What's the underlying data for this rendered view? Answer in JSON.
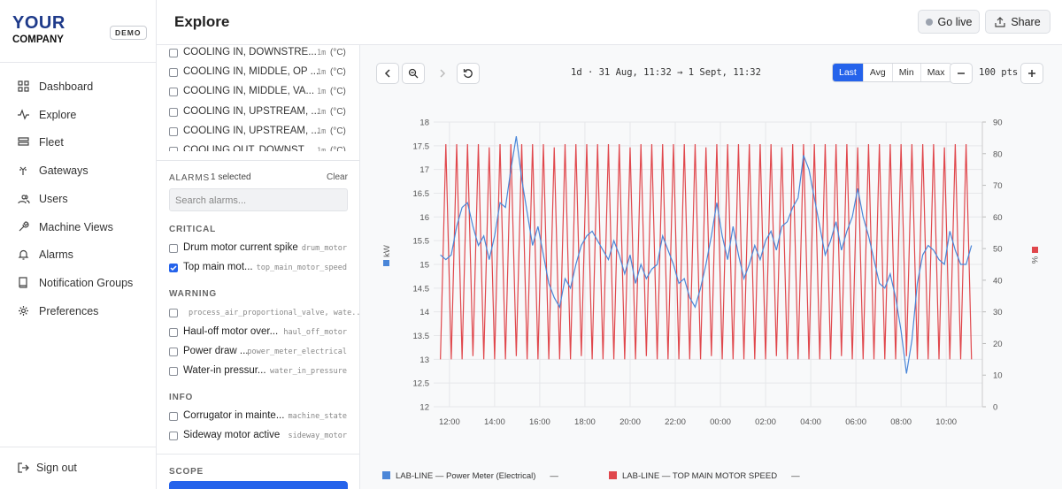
{
  "sidebar": {
    "logo_line1": "YOUR",
    "logo_line2": "COMPANY",
    "badge": "DEMO",
    "nav": [
      "Dashboard",
      "Explore",
      "Fleet",
      "Gateways",
      "Users",
      "Machine Views",
      "Alarms",
      "Notification Groups",
      "Preferences"
    ],
    "sign_out": "Sign out"
  },
  "header": {
    "title": "Explore",
    "go_live": "Go live",
    "share": "Share"
  },
  "signals": [
    {
      "name": "COOLING IN, DOWNSTRE...",
      "interval": "1m",
      "unit": "(°C)"
    },
    {
      "name": "COOLING IN, MIDDLE, OP ...",
      "interval": "1m",
      "unit": "(°C)"
    },
    {
      "name": "COOLING IN, MIDDLE, VA...",
      "interval": "1m",
      "unit": "(°C)"
    },
    {
      "name": "COOLING IN, UPSTREAM, ...",
      "interval": "1m",
      "unit": "(°C)"
    },
    {
      "name": "COOLING IN, UPSTREAM, ...",
      "interval": "1m",
      "unit": "(°C)"
    },
    {
      "name": "COOLING OUT, DOWNST...",
      "interval": "1m",
      "unit": "(°C)"
    }
  ],
  "alarms": {
    "title": "ALARMS",
    "selected": "1 selected",
    "clear": "Clear",
    "search_placeholder": "Search alarms...",
    "groups": [
      {
        "name": "CRITICAL",
        "items": [
          {
            "name": "Drum motor current spike",
            "code": "drum_motor",
            "checked": false
          },
          {
            "name": "Top main mot...",
            "code": "top_main_motor_speed",
            "checked": true
          }
        ]
      },
      {
        "name": "WARNING",
        "items": [
          {
            "code": "process_air_proportional_valve, wate...",
            "checked": false
          },
          {
            "name": "Haul-off motor over...",
            "code": "haul_off_motor",
            "checked": false
          },
          {
            "name": "Power draw ...",
            "code": "power_meter_electrical",
            "checked": false
          },
          {
            "name": "Water-in pressur...",
            "code": "water_in_pressure",
            "checked": false
          }
        ]
      },
      {
        "name": "INFO",
        "items": [
          {
            "name": "Corrugator in mainte...",
            "code": "machine_state",
            "checked": false
          },
          {
            "name": "Sideway motor active",
            "code": "sideway_motor",
            "checked": false
          }
        ]
      }
    ]
  },
  "scope": {
    "title": "SCOPE"
  },
  "toolbar": {
    "range": "1d · 31 Aug, 11:32 → 1 Sept, 11:32",
    "modes": [
      "Last",
      "Avg",
      "Min",
      "Max"
    ],
    "active_mode": "Last",
    "points": "100 pts"
  },
  "chart_data": {
    "type": "line",
    "ylabel": "kW",
    "y2label": "%",
    "grid": true,
    "xlim": [
      11.3,
      35.6
    ],
    "xticks": [
      {
        "value": 12,
        "label": "12:00"
      },
      {
        "value": 14,
        "label": "14:00"
      },
      {
        "value": 16,
        "label": "16:00"
      },
      {
        "value": 18,
        "label": "18:00"
      },
      {
        "value": 20,
        "label": "20:00"
      },
      {
        "value": 22,
        "label": "22:00"
      },
      {
        "value": 24,
        "label": "00:00"
      },
      {
        "value": 26,
        "label": "02:00"
      },
      {
        "value": 28,
        "label": "04:00"
      },
      {
        "value": 30,
        "label": "06:00"
      },
      {
        "value": 32,
        "label": "08:00"
      },
      {
        "value": 34,
        "label": "10:00"
      }
    ],
    "ylim": [
      12,
      18
    ],
    "yticks": [
      12,
      12.5,
      13,
      13.5,
      14,
      14.5,
      15,
      15.5,
      16,
      16.5,
      17,
      17.5,
      18
    ],
    "y2lim": [
      0,
      90
    ],
    "y2ticks": [
      0,
      10,
      20,
      30,
      40,
      50,
      60,
      70,
      80,
      90
    ],
    "x": [
      11.6,
      11.84,
      12.08,
      12.32,
      12.56,
      12.8,
      13.04,
      13.28,
      13.52,
      13.76,
      14,
      14.24,
      14.48,
      14.72,
      14.96,
      15.2,
      15.44,
      15.68,
      15.92,
      16.16,
      16.4,
      16.64,
      16.88,
      17.12,
      17.36,
      17.6,
      17.84,
      18.08,
      18.32,
      18.56,
      18.8,
      19.04,
      19.28,
      19.52,
      19.76,
      20,
      20.24,
      20.48,
      20.72,
      20.96,
      21.2,
      21.44,
      21.68,
      21.92,
      22.16,
      22.4,
      22.64,
      22.88,
      23.12,
      23.36,
      23.6,
      23.84,
      24.08,
      24.32,
      24.56,
      24.8,
      25.04,
      25.28,
      25.52,
      25.76,
      26,
      26.24,
      26.48,
      26.72,
      26.96,
      27.2,
      27.44,
      27.68,
      27.92,
      28.16,
      28.4,
      28.64,
      28.88,
      29.12,
      29.36,
      29.6,
      29.84,
      30.08,
      30.32,
      30.56,
      30.8,
      31.04,
      31.28,
      31.52,
      31.76,
      32,
      32.24,
      32.48,
      32.72,
      32.96,
      33.2,
      33.44,
      33.68,
      33.92,
      34.16,
      34.4,
      34.64,
      34.88,
      35.12
    ],
    "series": [
      {
        "name": "LAB-LINE — Power Meter (Electrical)",
        "legend_value": "—",
        "color": "#4a86d8",
        "axis": "y",
        "values": [
          15.2,
          15.1,
          15.2,
          15.8,
          16.2,
          16.3,
          15.8,
          15.4,
          15.6,
          15.1,
          15.6,
          16.3,
          16.2,
          17.0,
          17.7,
          16.8,
          16.1,
          15.4,
          15.8,
          15.2,
          14.6,
          14.3,
          14.1,
          14.7,
          14.5,
          15.0,
          15.4,
          15.6,
          15.7,
          15.5,
          15.3,
          15.1,
          15.5,
          15.2,
          14.8,
          15.2,
          14.6,
          15.0,
          14.7,
          14.9,
          15.0,
          15.6,
          15.3,
          15.0,
          14.6,
          14.7,
          14.3,
          14.1,
          14.5,
          15.0,
          15.6,
          16.3,
          15.6,
          15.1,
          15.8,
          15.2,
          14.7,
          15.0,
          15.4,
          15.1,
          15.5,
          15.7,
          15.3,
          15.8,
          15.9,
          16.2,
          16.4,
          17.3,
          17.0,
          16.4,
          15.8,
          15.2,
          15.5,
          15.9,
          15.3,
          15.7,
          16.0,
          16.6,
          16.0,
          15.6,
          15.1,
          14.6,
          14.5,
          14.8,
          14.3,
          13.6,
          12.7,
          13.4,
          14.6,
          15.2,
          15.4,
          15.3,
          15.1,
          15.0,
          15.7,
          15.3,
          15.0,
          15.0,
          15.4
        ]
      },
      {
        "name": "LAB-LINE — TOP MAIN MOTOR SPEED",
        "legend_value": "—",
        "color": "#e0474c",
        "axis": "y2",
        "values": [
          15,
          83,
          15,
          83,
          15,
          83,
          16,
          83,
          15,
          82,
          15,
          83,
          15,
          83,
          16,
          83,
          15,
          83,
          15,
          83,
          15,
          82,
          15,
          83,
          15,
          83,
          16,
          83,
          15,
          83,
          15,
          83,
          15,
          83,
          15,
          82,
          15,
          83,
          16,
          83,
          15,
          83,
          15,
          83,
          15,
          83,
          15,
          83,
          15,
          82,
          16,
          83,
          15,
          83,
          15,
          83,
          15,
          83,
          15,
          83,
          15,
          83,
          16,
          82,
          15,
          83,
          15,
          83,
          15,
          83,
          15,
          83,
          15,
          83,
          16,
          83,
          15,
          82,
          15,
          83,
          15,
          83,
          15,
          83,
          15,
          83,
          16,
          83,
          15,
          83,
          15,
          83,
          15,
          82,
          15,
          83,
          15,
          83,
          15
        ]
      }
    ]
  }
}
